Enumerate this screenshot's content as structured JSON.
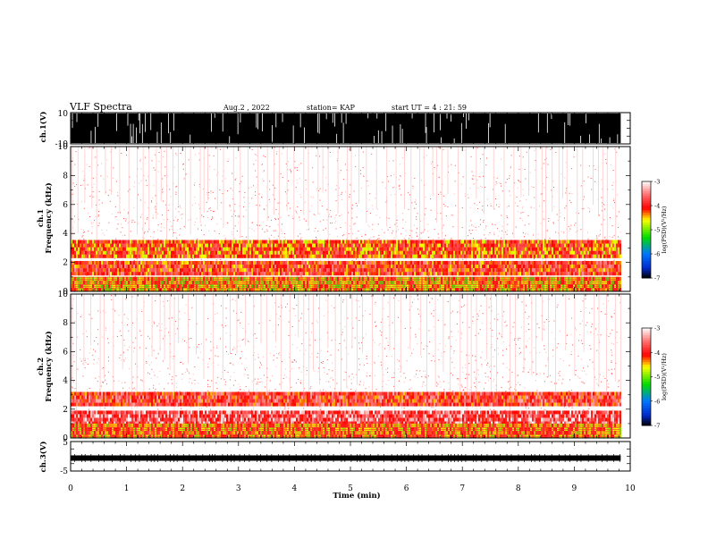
{
  "header": {
    "title": "VLF Spectra",
    "date": "Aug.2 , 2022",
    "station": "station= KAP",
    "start": "start UT = 4 : 21: 59"
  },
  "chart_data": [
    {
      "id": "ch1-waveform",
      "type": "line",
      "ylabel": "ch.1(V)",
      "ylim": [
        -10,
        10
      ],
      "yticks": [
        "10",
        "-10"
      ],
      "xlim": [
        0,
        10
      ],
      "data_end_min": 9.83,
      "amplitude_note": "saturated signal spanning full -10 to 10 V range"
    },
    {
      "id": "ch1-spectrogram",
      "type": "heatmap",
      "ylabel": "ch.1\nFrequency (kHz)",
      "ylim": [
        0,
        10
      ],
      "yticks": [
        "0",
        "2",
        "4",
        "6",
        "8",
        "10"
      ],
      "xlim": [
        0,
        10
      ],
      "data_end_min": 9.83,
      "bands_khz": [
        {
          "from": 2.3,
          "to": 3.4,
          "level": -4.2
        },
        {
          "from": 1.1,
          "to": 2.0,
          "level": -4.0
        },
        {
          "from": 0.0,
          "to": 1.0,
          "level": -4.6
        }
      ],
      "colorbar": {
        "label": "log(PSD)(V²/Hz)",
        "min": -7,
        "max": -3,
        "ticks": [
          "-3",
          "-4",
          "-5",
          "-6",
          "-7"
        ]
      }
    },
    {
      "id": "ch2-spectrogram",
      "type": "heatmap",
      "ylabel": "ch.2\nFrequency (kHz)",
      "ylim": [
        0,
        10
      ],
      "yticks": [
        "0",
        "2",
        "4",
        "6",
        "8",
        "10"
      ],
      "xlim": [
        0,
        10
      ],
      "data_end_min": 9.83,
      "bands_khz": [
        {
          "from": 2.2,
          "to": 3.1,
          "level": -3.9
        },
        {
          "from": 0.9,
          "to": 1.9,
          "level": -3.6
        },
        {
          "from": 0.0,
          "to": 0.8,
          "level": -4.4
        }
      ],
      "colorbar": {
        "label": "log(PSD)(V²/Hz)",
        "min": -7,
        "max": -3,
        "ticks": [
          "-3",
          "-4",
          "-5",
          "-6",
          "-7"
        ]
      }
    },
    {
      "id": "ch3-waveform",
      "type": "line",
      "ylabel": "ch.3(V)",
      "ylim": [
        -5,
        5
      ],
      "yticks": [
        "5",
        "-5"
      ],
      "xlim": [
        0,
        10
      ],
      "data_end_min": 9.83,
      "amplitude_note": "narrow band around about -1 V"
    }
  ],
  "xaxis": {
    "label": "Time (min)",
    "ticks": [
      "0",
      "1",
      "2",
      "3",
      "4",
      "5",
      "6",
      "7",
      "8",
      "9",
      "10"
    ]
  },
  "colors": {
    "white": "#ffffff",
    "pink": "#ffb0b0",
    "red": "#ff1010",
    "yellow": "#ffff00",
    "green": "#00d000",
    "blue": "#0040ff",
    "black": "#000000"
  }
}
